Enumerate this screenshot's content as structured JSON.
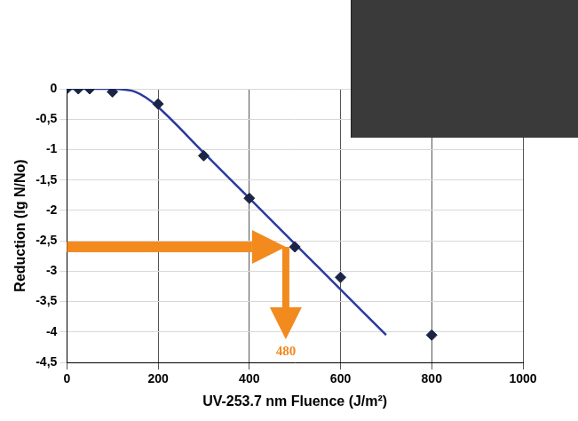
{
  "chart_data": {
    "type": "scatter",
    "x_label": "UV-253.7 nm Fluence (J/m²)",
    "y_label": "Reduction (lg N/No)",
    "xlim": [
      0,
      1000
    ],
    "xticks": [
      0,
      200,
      400,
      600,
      800,
      1000
    ],
    "ylim": [
      -4.5,
      0
    ],
    "yticks": [
      0,
      {
        "value": -0.5,
        "label": "-0,5"
      },
      -1,
      {
        "value": -1.5,
        "label": "-1,5"
      },
      -2,
      {
        "value": -2.5,
        "label": "-2,5"
      },
      -3,
      {
        "value": -3.5,
        "label": "-3,5"
      },
      -4,
      {
        "value": -4.5,
        "label": "-4,5"
      }
    ],
    "grid": true,
    "series": [
      {
        "type": "scatter",
        "color": "#1c2547",
        "marker": "diamond",
        "x": [
          0,
          25,
          50,
          100,
          200,
          300,
          400,
          500,
          600,
          800
        ],
        "values": [
          0,
          0,
          0,
          -0.05,
          -0.25,
          -1.1,
          -1.8,
          -2.6,
          -3.1,
          -4.05
        ]
      },
      {
        "type": "line",
        "color": "#2b3a9c",
        "line_style": "solid",
        "x": [
          0,
          100,
          150,
          200,
          300,
          400,
          500,
          600,
          700
        ],
        "values": [
          0,
          0,
          -0.05,
          -0.3,
          -1.05,
          -1.8,
          -2.55,
          -3.3,
          -4.05
        ]
      }
    ],
    "annotations": [
      {
        "text": "480",
        "x": 480,
        "y": -2.6,
        "color": "#f28a1e"
      }
    ]
  }
}
